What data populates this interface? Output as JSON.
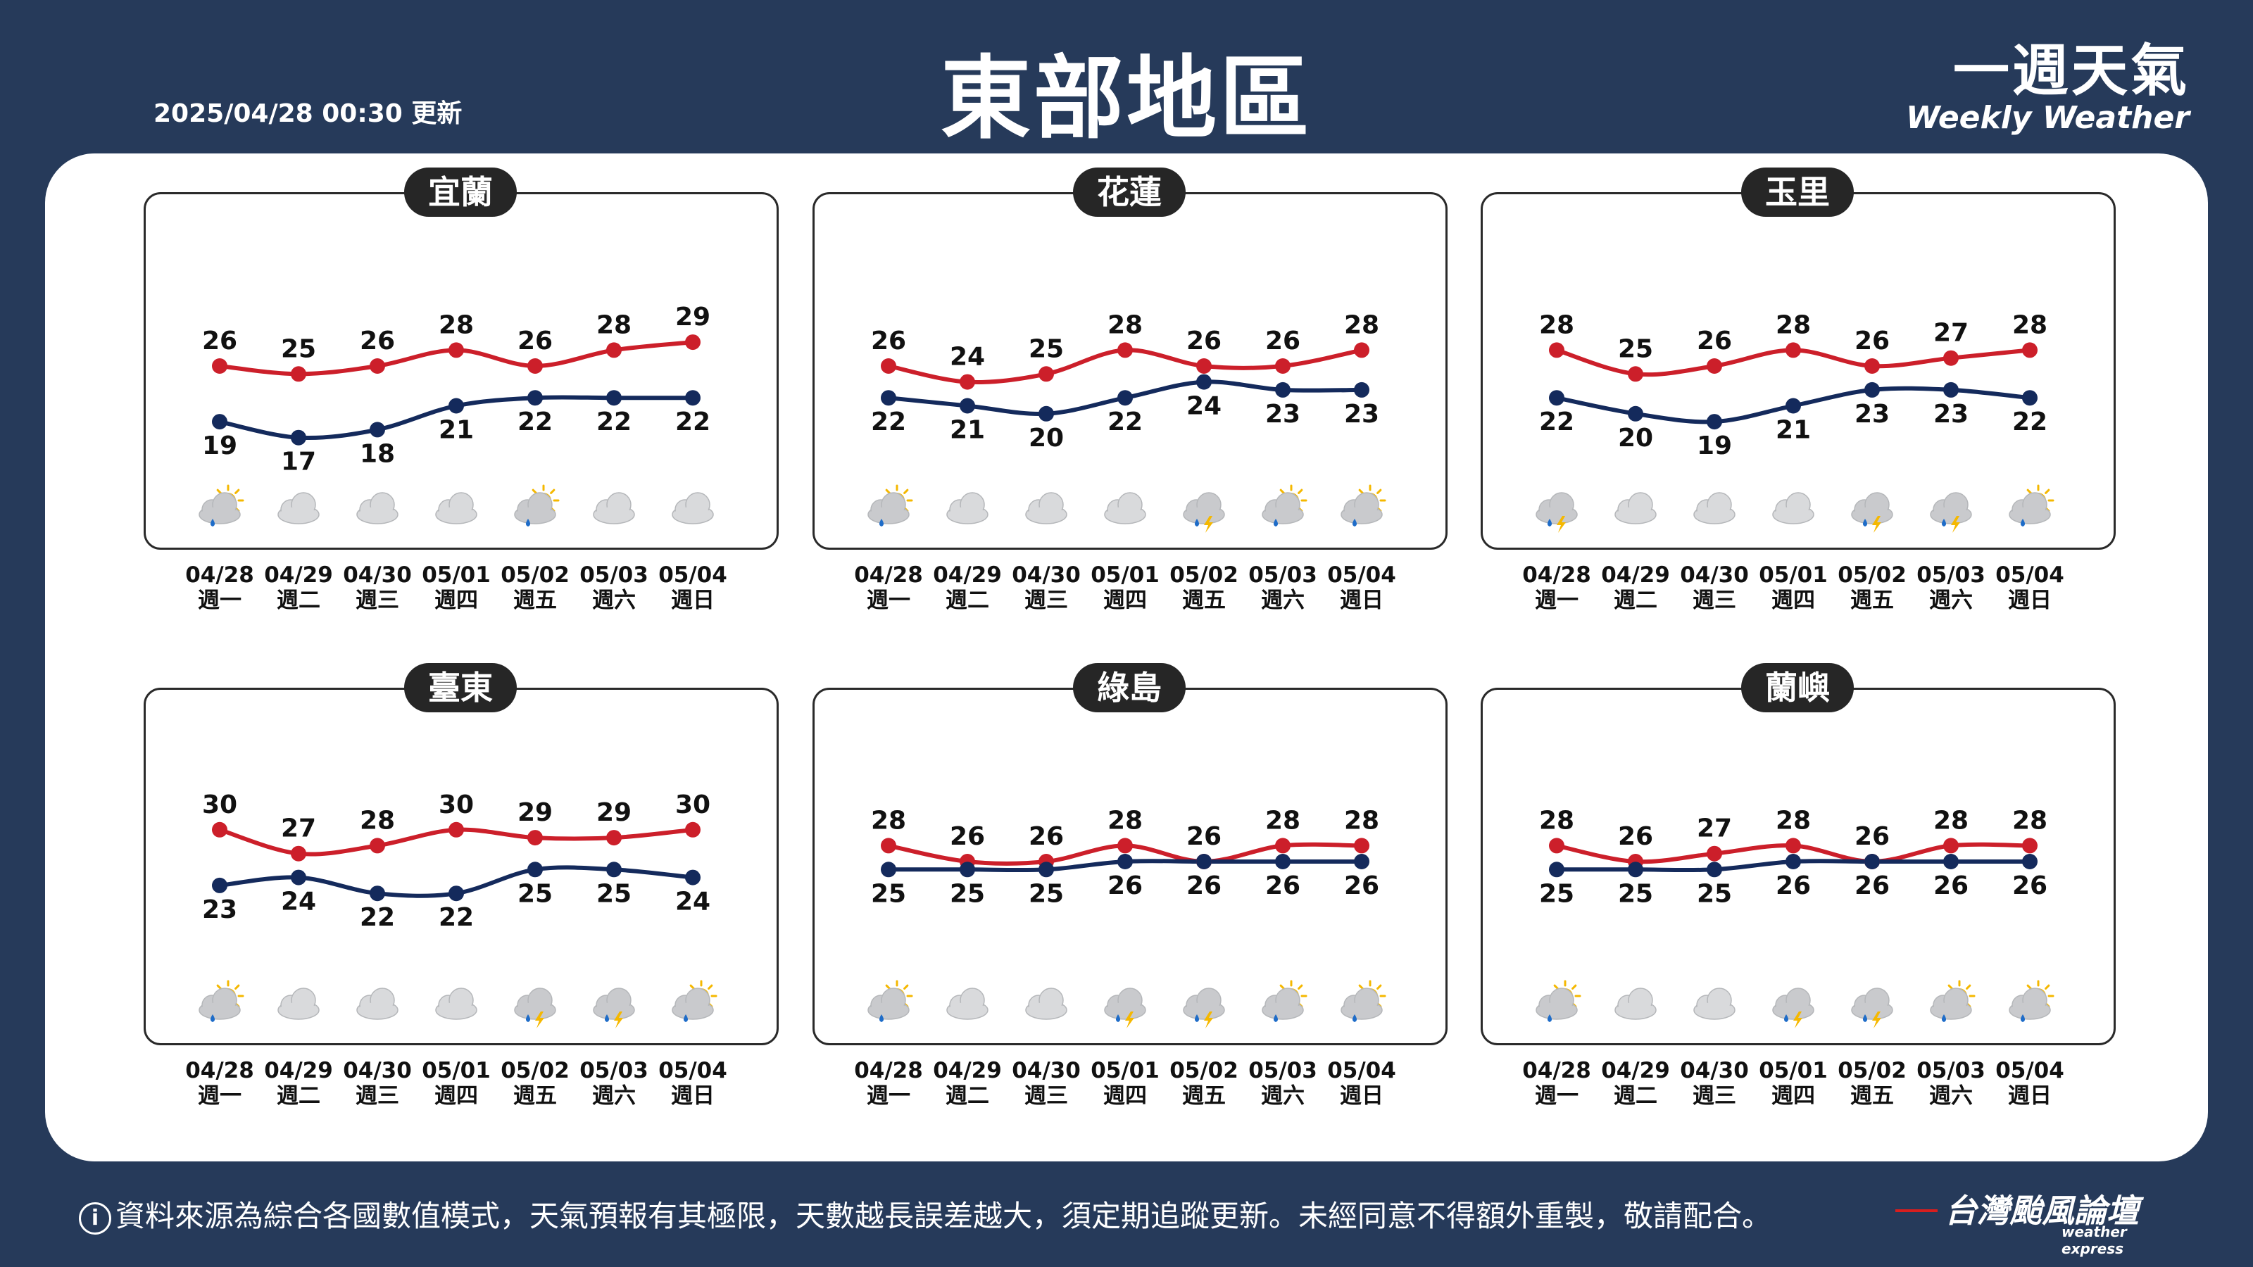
{
  "header": {
    "updated": "2025/04/28 00:30 更新",
    "title": "東部地區",
    "brand_zh": "一週天氣",
    "brand_en": "Weekly Weather"
  },
  "footer": {
    "info_icon": "i",
    "disclaimer": "資料來源為綜合各國數值模式，天氣預報有其極限，天數越長誤差越大，須定期追蹤更新。未經同意不得額外重製，敬請配合。",
    "logo_zh": "台灣颱風論壇",
    "logo_en": "weather express"
  },
  "colors": {
    "high": "#cc1f2a",
    "low": "#142a5c",
    "background": "#263a5a"
  },
  "chart_data": [
    {
      "type": "line",
      "title": "宜蘭",
      "dates": [
        "04/28",
        "04/29",
        "04/30",
        "05/01",
        "05/02",
        "05/03",
        "05/04"
      ],
      "weekdays": [
        "週一",
        "週二",
        "週三",
        "週四",
        "週五",
        "週六",
        "週日"
      ],
      "series": [
        {
          "values": [
            26,
            25,
            26,
            28,
            26,
            28,
            29
          ]
        },
        {
          "values": [
            19,
            17,
            18,
            21,
            22,
            22,
            22
          ]
        }
      ],
      "icons": [
        "sun-cloud-rain",
        "cloud",
        "cloud",
        "cloud",
        "sun-cloud-rain",
        "cloud",
        "cloud"
      ]
    },
    {
      "type": "line",
      "title": "花蓮",
      "dates": [
        "04/28",
        "04/29",
        "04/30",
        "05/01",
        "05/02",
        "05/03",
        "05/04"
      ],
      "weekdays": [
        "週一",
        "週二",
        "週三",
        "週四",
        "週五",
        "週六",
        "週日"
      ],
      "series": [
        {
          "values": [
            26,
            24,
            25,
            28,
            26,
            26,
            28
          ]
        },
        {
          "values": [
            22,
            21,
            20,
            22,
            24,
            23,
            23
          ]
        }
      ],
      "icons": [
        "sun-cloud-rain",
        "cloud",
        "cloud",
        "cloud",
        "thunder-rain",
        "sun-cloud-rain",
        "sun-cloud-rain"
      ]
    },
    {
      "type": "line",
      "title": "玉里",
      "dates": [
        "04/28",
        "04/29",
        "04/30",
        "05/01",
        "05/02",
        "05/03",
        "05/04"
      ],
      "weekdays": [
        "週一",
        "週二",
        "週三",
        "週四",
        "週五",
        "週六",
        "週日"
      ],
      "series": [
        {
          "values": [
            28,
            25,
            26,
            28,
            26,
            27,
            28
          ]
        },
        {
          "values": [
            22,
            20,
            19,
            21,
            23,
            23,
            22
          ]
        }
      ],
      "icons": [
        "thunder-rain",
        "cloud",
        "cloud",
        "cloud",
        "thunder-rain",
        "thunder-rain",
        "sun-cloud-rain"
      ]
    },
    {
      "type": "line",
      "title": "臺東",
      "dates": [
        "04/28",
        "04/29",
        "04/30",
        "05/01",
        "05/02",
        "05/03",
        "05/04"
      ],
      "weekdays": [
        "週一",
        "週二",
        "週三",
        "週四",
        "週五",
        "週六",
        "週日"
      ],
      "series": [
        {
          "values": [
            30,
            27,
            28,
            30,
            29,
            29,
            30
          ]
        },
        {
          "values": [
            23,
            24,
            22,
            22,
            25,
            25,
            24
          ]
        }
      ],
      "icons": [
        "sun-cloud-rain",
        "cloud",
        "cloud",
        "cloud",
        "thunder-rain",
        "thunder-rain",
        "sun-cloud-rain"
      ]
    },
    {
      "type": "line",
      "title": "綠島",
      "dates": [
        "04/28",
        "04/29",
        "04/30",
        "05/01",
        "05/02",
        "05/03",
        "05/04"
      ],
      "weekdays": [
        "週一",
        "週二",
        "週三",
        "週四",
        "週五",
        "週六",
        "週日"
      ],
      "series": [
        {
          "values": [
            28,
            26,
            26,
            28,
            26,
            28,
            28
          ]
        },
        {
          "values": [
            25,
            25,
            25,
            26,
            26,
            26,
            26
          ]
        }
      ],
      "icons": [
        "sun-cloud-rain",
        "cloud",
        "cloud",
        "thunder-rain",
        "thunder-rain",
        "sun-cloud-rain",
        "sun-cloud-rain"
      ]
    },
    {
      "type": "line",
      "title": "蘭嶼",
      "dates": [
        "04/28",
        "04/29",
        "04/30",
        "05/01",
        "05/02",
        "05/03",
        "05/04"
      ],
      "weekdays": [
        "週一",
        "週二",
        "週三",
        "週四",
        "週五",
        "週六",
        "週日"
      ],
      "series": [
        {
          "values": [
            28,
            26,
            27,
            28,
            26,
            28,
            28
          ]
        },
        {
          "values": [
            25,
            25,
            25,
            26,
            26,
            26,
            26
          ]
        }
      ],
      "icons": [
        "sun-cloud-rain",
        "cloud",
        "cloud",
        "thunder-rain",
        "thunder-rain",
        "sun-cloud-rain",
        "sun-cloud-rain"
      ]
    }
  ]
}
